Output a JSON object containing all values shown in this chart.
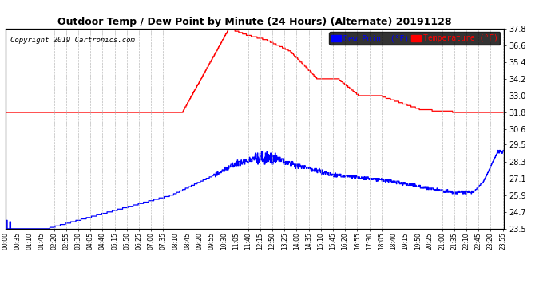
{
  "title": "Outdoor Temp / Dew Point by Minute (24 Hours) (Alternate) 20191128",
  "copyright": "Copyright 2019 Cartronics.com",
  "legend_labels": [
    "Dew Point (°F)",
    "Temperature (°F)"
  ],
  "legend_bg": "black",
  "bg_color": "#ffffff",
  "plot_bg_color": "#ffffff",
  "grid_color": "#bbbbbb",
  "ylim": [
    23.5,
    37.8
  ],
  "yticks": [
    23.5,
    24.7,
    25.9,
    27.1,
    28.3,
    29.5,
    30.6,
    31.8,
    33.0,
    34.2,
    35.4,
    36.6,
    37.8
  ],
  "num_minutes": 1440,
  "temp_color": "red",
  "dew_color": "blue",
  "title_fontsize": 9,
  "copyright_fontsize": 6.5,
  "tick_fontsize": 5.5,
  "ytick_fontsize": 7,
  "legend_fontsize": 7,
  "linewidth": 0.9
}
